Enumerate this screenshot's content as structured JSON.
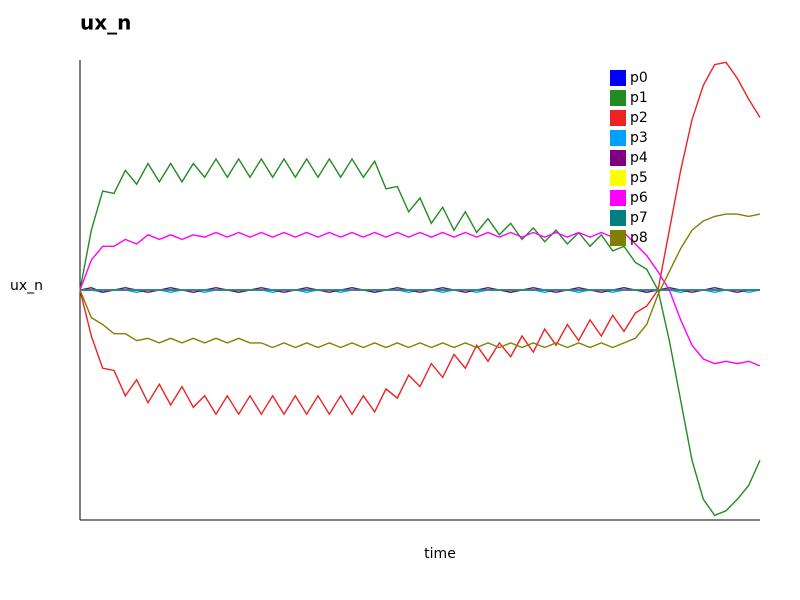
{
  "chart_data": {
    "type": "line",
    "title": "ux_n",
    "x_label": "time",
    "y_label": "ux_n",
    "x": [
      0,
      1,
      2,
      3,
      4,
      5,
      6,
      7,
      8,
      9,
      10,
      11,
      12,
      13,
      14,
      15,
      16,
      17,
      18,
      19,
      20,
      21,
      22,
      23,
      24,
      25,
      26,
      27,
      28,
      29,
      30,
      31,
      32,
      33,
      34,
      35,
      36,
      37,
      38,
      39,
      40,
      41,
      42,
      43,
      44,
      45,
      46,
      47,
      48,
      49,
      50,
      51,
      52,
      53,
      54,
      55,
      56,
      57,
      58,
      59,
      60
    ],
    "xlim": [
      0,
      60
    ],
    "ylim": [
      -1,
      1
    ],
    "legend": "upper right",
    "series": [
      {
        "name": "p0",
        "color": "#0000ff",
        "values": [
          0,
          0,
          0,
          0,
          0,
          0,
          0,
          0,
          0,
          0,
          0,
          0,
          0,
          0,
          0,
          0,
          0,
          0,
          0,
          0,
          0,
          0,
          0,
          0,
          0,
          0,
          0,
          0,
          0,
          0,
          0,
          0,
          0,
          0,
          0,
          0,
          0,
          0,
          0,
          0,
          0,
          0,
          0,
          0,
          0,
          0,
          0,
          0,
          0,
          0,
          0,
          0,
          0,
          0,
          0,
          0,
          0,
          0,
          0,
          0,
          0
        ]
      },
      {
        "name": "p1",
        "color": "#228b22",
        "values": [
          0,
          0.26,
          0.43,
          0.42,
          0.52,
          0.46,
          0.55,
          0.47,
          0.55,
          0.47,
          0.55,
          0.49,
          0.57,
          0.49,
          0.57,
          0.49,
          0.57,
          0.49,
          0.57,
          0.49,
          0.57,
          0.49,
          0.57,
          0.49,
          0.57,
          0.49,
          0.56,
          0.44,
          0.45,
          0.34,
          0.4,
          0.29,
          0.36,
          0.26,
          0.34,
          0.25,
          0.31,
          0.24,
          0.29,
          0.22,
          0.27,
          0.21,
          0.26,
          0.2,
          0.25,
          0.19,
          0.24,
          0.17,
          0.19,
          0.12,
          0.09,
          0,
          -0.22,
          -0.48,
          -0.74,
          -0.91,
          -0.98,
          -0.96,
          -0.91,
          -0.85,
          -0.74
        ]
      },
      {
        "name": "p2",
        "color": "#ee2222",
        "values": [
          0,
          -0.2,
          -0.34,
          -0.35,
          -0.46,
          -0.39,
          -0.49,
          -0.41,
          -0.5,
          -0.42,
          -0.51,
          -0.46,
          -0.54,
          -0.46,
          -0.54,
          -0.46,
          -0.54,
          -0.46,
          -0.54,
          -0.46,
          -0.54,
          -0.46,
          -0.54,
          -0.46,
          -0.54,
          -0.46,
          -0.53,
          -0.43,
          -0.47,
          -0.37,
          -0.42,
          -0.32,
          -0.38,
          -0.28,
          -0.34,
          -0.24,
          -0.31,
          -0.23,
          -0.29,
          -0.2,
          -0.27,
          -0.17,
          -0.24,
          -0.15,
          -0.22,
          -0.13,
          -0.2,
          -0.11,
          -0.18,
          -0.1,
          -0.07,
          0,
          0.26,
          0.52,
          0.74,
          0.89,
          0.98,
          0.99,
          0.92,
          0.83,
          0.75
        ]
      },
      {
        "name": "p3",
        "color": "#00a0ff",
        "values": [
          0,
          0,
          -0.01,
          0,
          0,
          -0.01,
          0,
          0,
          -0.01,
          0,
          0,
          -0.01,
          0,
          0,
          -0.01,
          0,
          0,
          -0.01,
          0,
          0,
          -0.01,
          0,
          0,
          -0.01,
          0,
          0,
          -0.01,
          0,
          0,
          -0.01,
          0,
          0,
          -0.01,
          0,
          0,
          -0.01,
          0,
          0,
          -0.01,
          0,
          0,
          -0.01,
          0,
          0,
          -0.01,
          0,
          0,
          -0.01,
          0,
          0,
          -0.01,
          0,
          0,
          -0.01,
          0,
          0,
          -0.01,
          0,
          0,
          -0.01,
          0
        ]
      },
      {
        "name": "p4",
        "color": "#800080",
        "values": [
          0,
          0.01,
          -0.01,
          0,
          0.01,
          0,
          -0.01,
          0,
          0.01,
          0,
          -0.01,
          0,
          0.01,
          0,
          -0.01,
          0,
          0.01,
          0,
          -0.01,
          0,
          0.01,
          0,
          -0.01,
          0,
          0.01,
          0,
          -0.01,
          0,
          0.01,
          0,
          -0.01,
          0,
          0.01,
          0,
          -0.01,
          0,
          0.01,
          0,
          -0.01,
          0,
          0.01,
          0,
          -0.01,
          0,
          0.01,
          0,
          -0.01,
          0,
          0.01,
          0,
          -0.01,
          0,
          0.01,
          0,
          -0.01,
          0,
          0.01,
          0,
          -0.01,
          0,
          0
        ]
      },
      {
        "name": "p5",
        "color": "#ffff00",
        "values": [
          0,
          0,
          0,
          0,
          0,
          0,
          0,
          0,
          0,
          0,
          0,
          0,
          0,
          0,
          0,
          0,
          0,
          0,
          0,
          0,
          0,
          0,
          0,
          0,
          0,
          0,
          0,
          0,
          0,
          0,
          0,
          0,
          0,
          0,
          0,
          0,
          0,
          0,
          0,
          0,
          0,
          0,
          0,
          0,
          0,
          0,
          0,
          0,
          0,
          0,
          0,
          0,
          0,
          0,
          0,
          0,
          0,
          0,
          0,
          0,
          0
        ]
      },
      {
        "name": "p6",
        "color": "#ff00ff",
        "values": [
          0,
          0.13,
          0.19,
          0.19,
          0.22,
          0.2,
          0.24,
          0.22,
          0.24,
          0.22,
          0.24,
          0.23,
          0.25,
          0.23,
          0.25,
          0.23,
          0.25,
          0.23,
          0.25,
          0.23,
          0.25,
          0.23,
          0.25,
          0.23,
          0.25,
          0.23,
          0.25,
          0.23,
          0.25,
          0.23,
          0.25,
          0.23,
          0.25,
          0.23,
          0.25,
          0.23,
          0.25,
          0.23,
          0.25,
          0.23,
          0.25,
          0.23,
          0.25,
          0.23,
          0.25,
          0.23,
          0.25,
          0.23,
          0.25,
          0.2,
          0.15,
          0.08,
          0,
          -0.13,
          -0.24,
          -0.3,
          -0.32,
          -0.31,
          -0.32,
          -0.31,
          -0.33
        ]
      },
      {
        "name": "p7",
        "color": "#008080",
        "values": [
          0,
          0,
          0,
          0,
          0,
          0,
          0,
          0,
          0,
          0,
          0,
          0,
          0,
          0,
          0,
          0,
          0,
          0,
          0,
          0,
          0,
          0,
          0,
          0,
          0,
          0,
          0,
          0,
          0,
          0,
          0,
          0,
          0,
          0,
          0,
          0,
          0,
          0,
          0,
          0,
          0,
          0,
          0,
          0,
          0,
          0,
          0,
          0,
          0,
          0,
          0,
          0,
          0,
          0,
          0,
          0,
          0,
          0,
          0,
          0,
          0
        ]
      },
      {
        "name": "p8",
        "color": "#808000",
        "values": [
          0,
          -0.12,
          -0.15,
          -0.19,
          -0.19,
          -0.22,
          -0.21,
          -0.23,
          -0.21,
          -0.23,
          -0.21,
          -0.23,
          -0.21,
          -0.23,
          -0.21,
          -0.23,
          -0.23,
          -0.25,
          -0.23,
          -0.25,
          -0.23,
          -0.25,
          -0.23,
          -0.25,
          -0.23,
          -0.25,
          -0.23,
          -0.25,
          -0.23,
          -0.25,
          -0.23,
          -0.25,
          -0.23,
          -0.25,
          -0.23,
          -0.25,
          -0.23,
          -0.25,
          -0.23,
          -0.25,
          -0.23,
          -0.25,
          -0.23,
          -0.25,
          -0.23,
          -0.25,
          -0.23,
          -0.25,
          -0.23,
          -0.21,
          -0.15,
          -0.02,
          0.08,
          0.18,
          0.26,
          0.3,
          0.32,
          0.33,
          0.33,
          0.32,
          0.33
        ]
      }
    ]
  }
}
